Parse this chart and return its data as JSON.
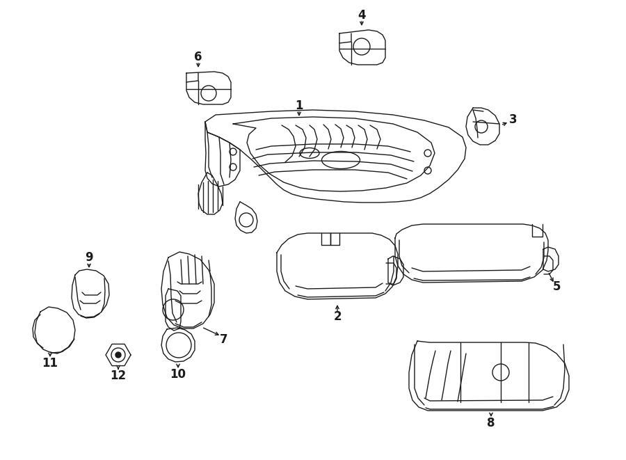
{
  "bg_color": "#ffffff",
  "line_color": "#1a1a1a",
  "lw": 1.0,
  "fig_width": 9.0,
  "fig_height": 6.61,
  "dpi": 100,
  "font_size": 12,
  "arrow_lw": 0.9
}
